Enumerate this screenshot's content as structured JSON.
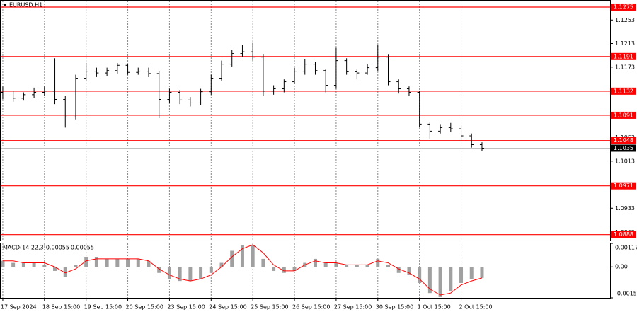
{
  "chart_data": {
    "type": "ohlc",
    "title": "EURUSD,H1",
    "xlim": [
      -0.2,
      58.3
    ],
    "xticks": [
      {
        "value": 0,
        "label": "17 Sep 2024"
      },
      {
        "value": 4,
        "label": "18 Sep 15:00"
      },
      {
        "value": 8,
        "label": "19 Sep 15:00"
      },
      {
        "value": 12,
        "label": "20 Sep 15:00"
      },
      {
        "value": 16,
        "label": "23 Sep 15:00"
      },
      {
        "value": 20,
        "label": "24 Sep 15:00"
      },
      {
        "value": 24,
        "label": "25 Sep 15:00"
      },
      {
        "value": 28,
        "label": "26 Sep 15:00"
      },
      {
        "value": 32,
        "label": "27 Sep 15:00"
      },
      {
        "value": 36,
        "label": "30 Sep 15:00"
      },
      {
        "value": 40,
        "label": "1 Oct 15:00"
      },
      {
        "value": 44,
        "label": "2 Oct 15:00"
      }
    ],
    "ylim": [
      1.0878,
      1.12858
    ],
    "yticks": [
      1.1253,
      1.1213,
      1.1173,
      1.1053,
      1.1013,
      1.0933,
      1.0892
    ],
    "color": "#000000",
    "open": [
      1.113,
      1.1124,
      1.112,
      1.1126,
      1.113,
      1.1132,
      1.1118,
      1.1088,
      1.1154,
      1.1166,
      1.1163,
      1.1167,
      1.1176,
      1.1164,
      1.1166,
      1.1162,
      1.1118,
      1.113,
      1.1117,
      1.1112,
      1.1131,
      1.1154,
      1.1178,
      1.1196,
      1.1199,
      1.119,
      1.1132,
      1.1136,
      1.1148,
      1.1166,
      1.1178,
      1.1167,
      1.1142,
      1.1184,
      1.1165,
      1.1163,
      1.1172,
      1.119,
      1.1148,
      1.1136,
      1.113,
      1.1076,
      1.1064,
      1.107,
      1.1068,
      1.1056,
      1.1041
    ],
    "high": [
      1.114,
      1.1132,
      1.113,
      1.1138,
      1.114,
      1.1188,
      1.1124,
      1.116,
      1.118,
      1.1172,
      1.1172,
      1.118,
      1.1178,
      1.1172,
      1.1172,
      1.1166,
      1.1136,
      1.1134,
      1.1122,
      1.1136,
      1.116,
      1.1184,
      1.1202,
      1.121,
      1.1214,
      1.1195,
      1.1142,
      1.1152,
      1.1172,
      1.1186,
      1.1182,
      1.117,
      1.1206,
      1.1188,
      1.117,
      1.1178,
      1.121,
      1.1194,
      1.1152,
      1.114,
      1.1132,
      1.108,
      1.1076,
      1.1078,
      1.1074,
      1.106,
      1.1045
    ],
    "low": [
      1.1118,
      1.1114,
      1.1116,
      1.112,
      1.1124,
      1.111,
      1.107,
      1.1084,
      1.115,
      1.1156,
      1.1158,
      1.1162,
      1.116,
      1.116,
      1.1156,
      1.1086,
      1.1112,
      1.111,
      1.1106,
      1.1108,
      1.1126,
      1.115,
      1.1174,
      1.119,
      1.1184,
      1.1124,
      1.1126,
      1.113,
      1.1144,
      1.116,
      1.116,
      1.113,
      1.1136,
      1.116,
      1.1152,
      1.116,
      1.1166,
      1.1142,
      1.1128,
      1.1124,
      1.107,
      1.105,
      1.106,
      1.1062,
      1.1048,
      1.1036,
      1.103
    ],
    "close": [
      1.1124,
      1.112,
      1.1126,
      1.113,
      1.1132,
      1.1118,
      1.1088,
      1.1154,
      1.1166,
      1.1163,
      1.1167,
      1.1176,
      1.1164,
      1.1166,
      1.1162,
      1.1118,
      1.113,
      1.1117,
      1.1112,
      1.1131,
      1.1154,
      1.1178,
      1.1196,
      1.1199,
      1.119,
      1.1132,
      1.1136,
      1.1148,
      1.1166,
      1.1178,
      1.1167,
      1.1142,
      1.1184,
      1.1165,
      1.1163,
      1.1172,
      1.119,
      1.1148,
      1.1136,
      1.113,
      1.1076,
      1.1064,
      1.107,
      1.1068,
      1.1056,
      1.1041,
      1.1035
    ],
    "levels": [
      1.1275,
      1.1191,
      1.1132,
      1.1091,
      1.1048,
      1.0971,
      1.0888
    ],
    "level_color": "#ff0000",
    "current_price": 1.1035,
    "macd": {
      "label": "MACD(14,22,3)",
      "main_value": -0.00055,
      "signal_value": -0.00055,
      "ylim": [
        -0.00154,
        0.00117
      ],
      "yticks": [
        0.00117,
        {
          "value": 0,
          "label": "0.00"
        },
        -0.00154
      ],
      "hist_color": "#a0a0a0",
      "signal_color": "#ff0000",
      "histogram": [
        0.0003,
        0.0002,
        0.0002,
        0.0002,
        0.0001,
        -0.0002,
        -0.0005,
        0.0001,
        0.0005,
        0.0005,
        0.0004,
        0.0004,
        0.0004,
        0.0004,
        0.0003,
        -0.0003,
        -0.0006,
        -0.0007,
        -0.0007,
        -0.0006,
        -0.0003,
        0.0002,
        0.0008,
        0.0011,
        0.0011,
        0.0004,
        -0.0002,
        -0.0003,
        -0.0002,
        0.0002,
        0.0004,
        0.0002,
        0.0002,
        0.0001,
        0.0001,
        0.0001,
        0.0004,
        0.0001,
        -0.0003,
        -0.0004,
        -0.0008,
        -0.0013,
        -0.0015,
        -0.0012,
        -0.0008,
        -0.0006,
        -0.00055
      ],
      "signal": [
        0.0003,
        0.0003,
        0.0002,
        0.0002,
        0.0002,
        0.0,
        -0.0003,
        -0.0001,
        0.0003,
        0.0004,
        0.0004,
        0.0004,
        0.0004,
        0.0004,
        0.0003,
        -0.0001,
        -0.0004,
        -0.0006,
        -0.0007,
        -0.0006,
        -0.0004,
        0.0,
        0.0005,
        0.0009,
        0.0011,
        0.0007,
        0.0001,
        -0.0002,
        -0.0002,
        0.0001,
        0.0003,
        0.0002,
        0.0002,
        0.0001,
        0.0001,
        0.0001,
        0.0003,
        0.0002,
        -0.0001,
        -0.0003,
        -0.0006,
        -0.0011,
        -0.0014,
        -0.0013,
        -0.0009,
        -0.0007,
        -0.00055
      ]
    }
  }
}
